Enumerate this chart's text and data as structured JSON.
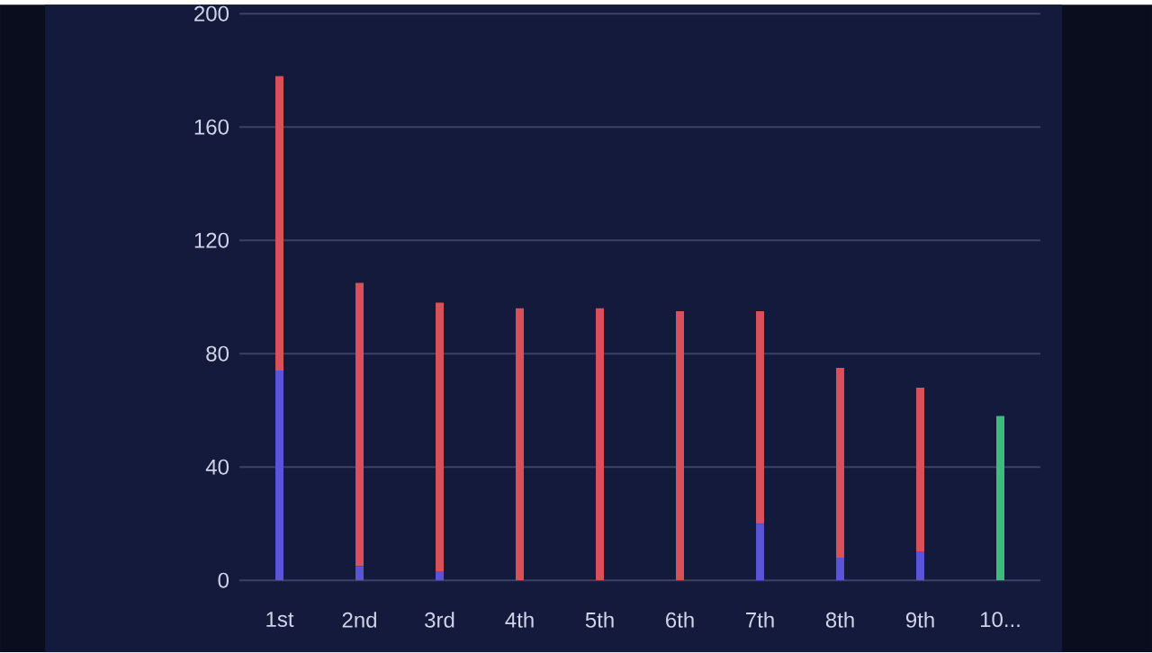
{
  "chart_data": {
    "type": "bar",
    "stacked": true,
    "grid": "y",
    "categories": [
      "1st",
      "2nd",
      "3rd",
      "4th",
      "5th",
      "6th",
      "7th",
      "8th",
      "9th",
      "10..."
    ],
    "series": [
      {
        "color": "#5b55d6",
        "values": [
          74,
          5,
          3,
          0,
          0,
          0,
          20,
          8,
          10,
          0
        ]
      },
      {
        "color": "#d9505a",
        "values": [
          104,
          100,
          95,
          96,
          96,
          95,
          75,
          67,
          58,
          0
        ]
      },
      {
        "color": "#3dbd7d",
        "values": [
          0,
          0,
          0,
          0,
          0,
          0,
          0,
          0,
          0,
          58
        ]
      }
    ],
    "ylim": [
      0,
      200
    ],
    "yticks": [
      0,
      40,
      80,
      120,
      160,
      200
    ]
  }
}
